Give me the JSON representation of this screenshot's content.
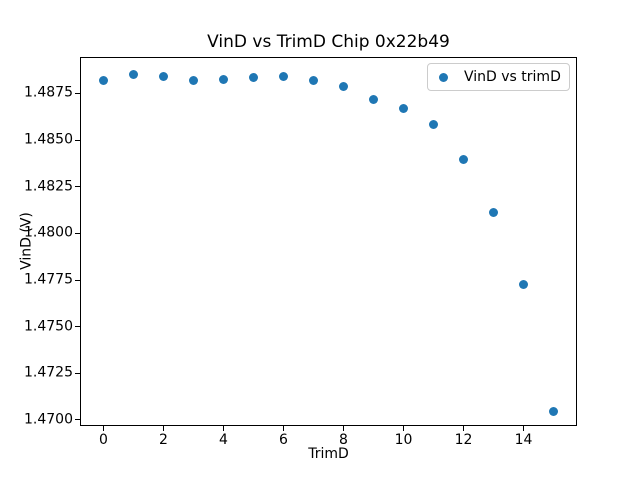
{
  "chart_data": {
    "type": "scatter",
    "title": "VinD vs TrimD Chip 0x22b49",
    "xlabel": "TrimD",
    "ylabel": "VinD (V)",
    "legend_label": "VinD vs trimD",
    "legend_position": "upper right",
    "marker_color": "#1f77b4",
    "grid": false,
    "x": [
      0,
      1,
      2,
      3,
      4,
      5,
      6,
      7,
      8,
      9,
      10,
      11,
      12,
      13,
      14,
      15
    ],
    "y": [
      1.48821,
      1.48849,
      1.48839,
      1.48821,
      1.48824,
      1.48838,
      1.48843,
      1.48821,
      1.48786,
      1.48715,
      1.4867,
      1.48585,
      1.48396,
      1.48112,
      1.47726,
      1.47044
    ],
    "xlim": [
      -0.75,
      15.75
    ],
    "ylim": [
      1.46973,
      1.4894
    ],
    "xticks": [
      0,
      2,
      4,
      6,
      8,
      10,
      12,
      14
    ],
    "yticks": [
      1.47,
      1.4725,
      1.475,
      1.4775,
      1.48,
      1.4825,
      1.485,
      1.4875
    ],
    "ytick_decimals": 4
  }
}
